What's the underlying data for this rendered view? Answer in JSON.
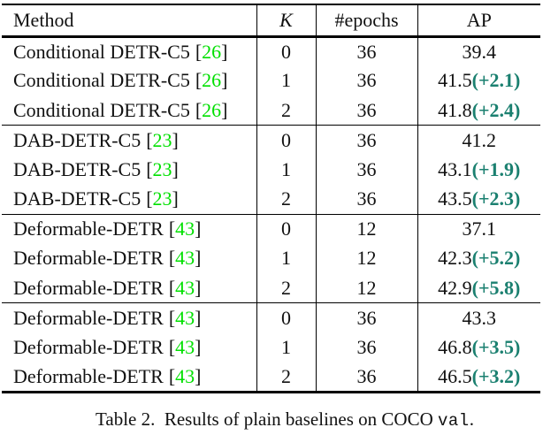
{
  "colors": {
    "text": "#111111",
    "rule": "#000000",
    "citation_green": "#00e000",
    "delta_teal": "#1b8070"
  },
  "table": {
    "headers": {
      "method": "Method",
      "k": "K",
      "epochs": "#epochs",
      "ap": "AP"
    },
    "citation_brackets": {
      "open": "[",
      "close": "]"
    },
    "rows": [
      {
        "method": "Conditional DETR-C5",
        "cite": "26",
        "k": "0",
        "epochs": "36",
        "ap": "39.4",
        "delta": ""
      },
      {
        "method": "Conditional DETR-C5",
        "cite": "26",
        "k": "1",
        "epochs": "36",
        "ap": "41.5",
        "delta": "(+2.1)"
      },
      {
        "method": "Conditional DETR-C5",
        "cite": "26",
        "k": "2",
        "epochs": "36",
        "ap": "41.8",
        "delta": "(+2.4)"
      },
      {
        "method": "DAB-DETR-C5",
        "cite": "23",
        "k": "0",
        "epochs": "36",
        "ap": "41.2",
        "delta": ""
      },
      {
        "method": "DAB-DETR-C5",
        "cite": "23",
        "k": "1",
        "epochs": "36",
        "ap": "43.1",
        "delta": "(+1.9)"
      },
      {
        "method": "DAB-DETR-C5",
        "cite": "23",
        "k": "2",
        "epochs": "36",
        "ap": "43.5",
        "delta": "(+2.3)"
      },
      {
        "method": "Deformable-DETR",
        "cite": "43",
        "k": "0",
        "epochs": "12",
        "ap": "37.1",
        "delta": ""
      },
      {
        "method": "Deformable-DETR",
        "cite": "43",
        "k": "1",
        "epochs": "12",
        "ap": "42.3",
        "delta": "(+5.2)"
      },
      {
        "method": "Deformable-DETR",
        "cite": "43",
        "k": "2",
        "epochs": "12",
        "ap": "42.9",
        "delta": "(+5.8)"
      },
      {
        "method": "Deformable-DETR",
        "cite": "43",
        "k": "0",
        "epochs": "36",
        "ap": "43.3",
        "delta": ""
      },
      {
        "method": "Deformable-DETR",
        "cite": "43",
        "k": "1",
        "epochs": "36",
        "ap": "46.8",
        "delta": "(+3.5)"
      },
      {
        "method": "Deformable-DETR",
        "cite": "43",
        "k": "2",
        "epochs": "36",
        "ap": "46.5",
        "delta": "(+3.2)"
      }
    ]
  },
  "caption": {
    "prefix": "Table 2.  Results of plain baselines on COCO ",
    "code": "val",
    "suffix": "."
  }
}
